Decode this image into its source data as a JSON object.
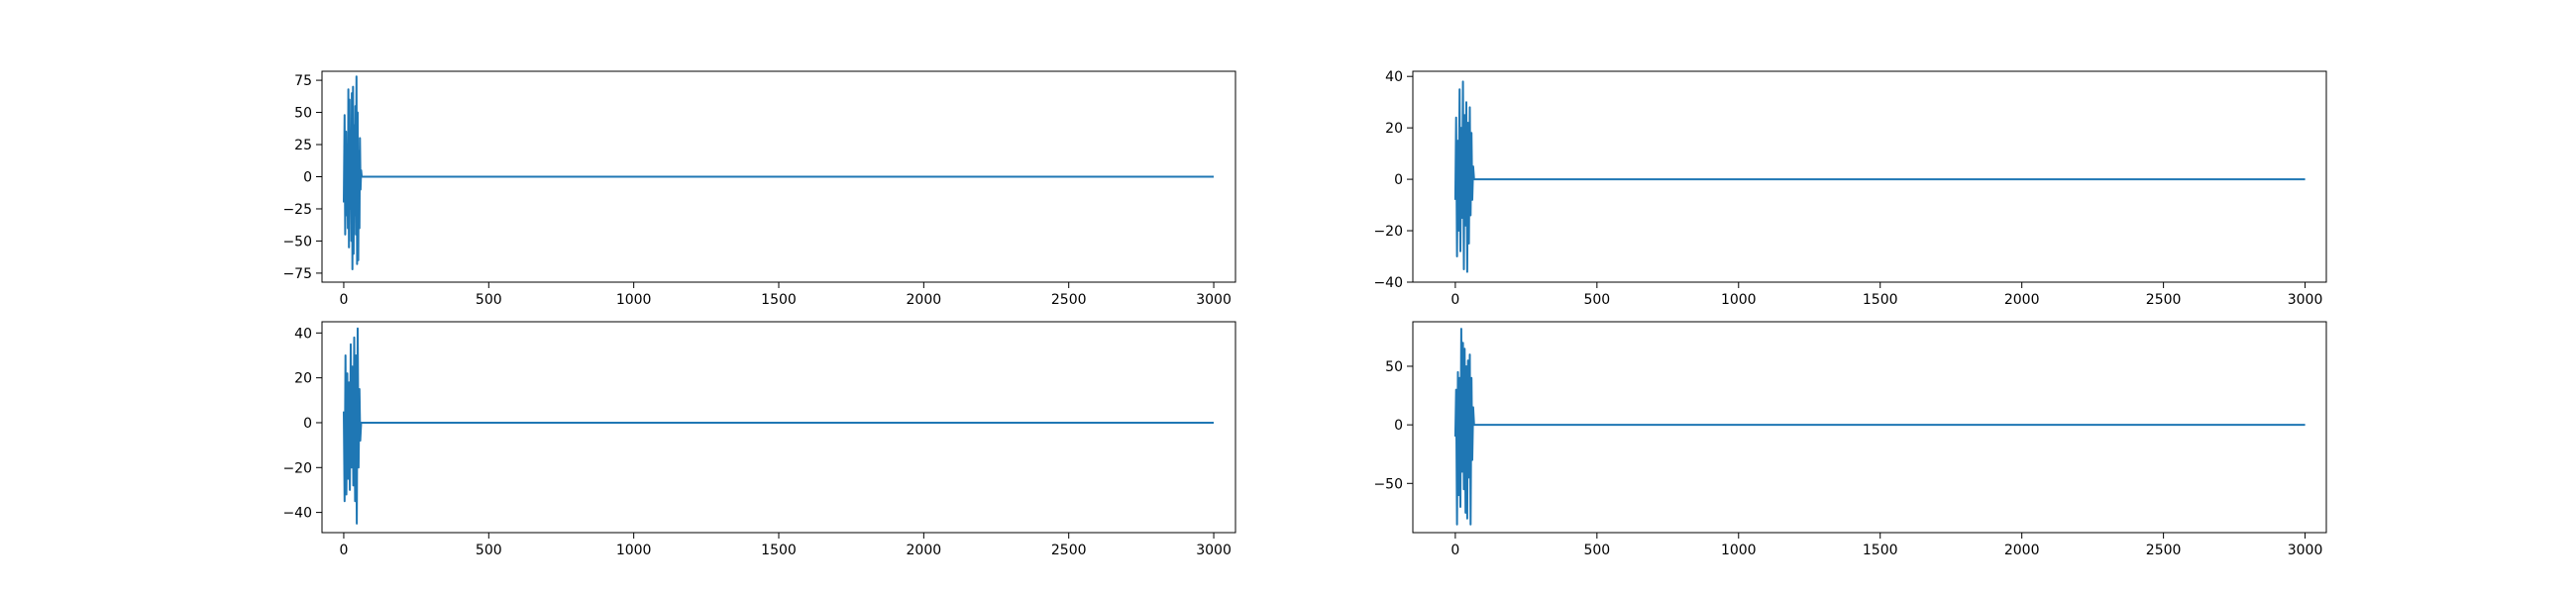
{
  "chart_data": [
    {
      "type": "line",
      "title": "",
      "xlabel": "",
      "ylabel": "",
      "xlim": [
        -75,
        3075
      ],
      "ylim": [
        -82,
        82
      ],
      "xticks": [
        0,
        500,
        1000,
        1500,
        2000,
        2500,
        3000
      ],
      "yticks": [
        -75,
        -50,
        -25,
        0,
        25,
        50,
        75
      ],
      "grid": false,
      "series": [
        {
          "color": "#1f77b4",
          "x": [
            0,
            3,
            5,
            8,
            10,
            12,
            14,
            16,
            18,
            20,
            22,
            24,
            26,
            28,
            30,
            32,
            34,
            36,
            38,
            40,
            42,
            44,
            46,
            48,
            50,
            52,
            54,
            56,
            58,
            60,
            62,
            3000
          ],
          "y": [
            -20,
            48,
            -45,
            35,
            -30,
            25,
            -40,
            68,
            -55,
            60,
            -25,
            20,
            -50,
            65,
            -72,
            70,
            -60,
            40,
            -30,
            55,
            -45,
            78,
            -68,
            50,
            -65,
            20,
            -40,
            30,
            -10,
            5,
            0,
            0
          ]
        }
      ]
    },
    {
      "type": "line",
      "title": "",
      "xlabel": "",
      "ylabel": "",
      "xlim": [
        -150,
        3075
      ],
      "ylim": [
        -40,
        42
      ],
      "xticks": [
        0,
        500,
        1000,
        1500,
        2000,
        2500,
        3000
      ],
      "yticks": [
        -40,
        -20,
        0,
        20,
        40
      ],
      "grid": false,
      "series": [
        {
          "color": "#1f77b4",
          "x": [
            0,
            3,
            6,
            9,
            12,
            15,
            18,
            21,
            24,
            27,
            30,
            33,
            36,
            39,
            42,
            45,
            48,
            51,
            54,
            57,
            60,
            63,
            66,
            3000
          ],
          "y": [
            -8,
            24,
            -30,
            15,
            -20,
            35,
            -28,
            20,
            -15,
            38,
            -35,
            25,
            -18,
            30,
            -36,
            22,
            -25,
            28,
            -14,
            18,
            -8,
            5,
            0,
            0
          ]
        }
      ]
    },
    {
      "type": "line",
      "title": "",
      "xlabel": "",
      "ylabel": "",
      "xlim": [
        -75,
        3075
      ],
      "ylim": [
        -49,
        45
      ],
      "xticks": [
        0,
        500,
        1000,
        1500,
        2000,
        2500,
        3000
      ],
      "yticks": [
        -40,
        -20,
        0,
        20,
        40
      ],
      "grid": false,
      "series": [
        {
          "color": "#1f77b4",
          "x": [
            0,
            3,
            6,
            9,
            12,
            15,
            18,
            21,
            24,
            27,
            30,
            33,
            36,
            39,
            42,
            45,
            48,
            51,
            54,
            57,
            60,
            3000
          ],
          "y": [
            5,
            -35,
            30,
            -32,
            22,
            -25,
            18,
            -30,
            35,
            -20,
            25,
            -28,
            38,
            -35,
            30,
            -45,
            42,
            -20,
            15,
            -8,
            0,
            0
          ]
        }
      ]
    },
    {
      "type": "line",
      "title": "",
      "xlabel": "",
      "ylabel": "",
      "xlim": [
        -150,
        3075
      ],
      "ylim": [
        -92,
        88
      ],
      "xticks": [
        0,
        500,
        1000,
        1500,
        2000,
        2500,
        3000
      ],
      "yticks": [
        -50,
        0,
        50
      ],
      "grid": false,
      "series": [
        {
          "color": "#1f77b4",
          "x": [
            0,
            3,
            6,
            9,
            12,
            15,
            18,
            21,
            24,
            27,
            30,
            33,
            36,
            39,
            42,
            45,
            48,
            51,
            54,
            57,
            60,
            63,
            66,
            3000
          ],
          "y": [
            -10,
            30,
            -85,
            45,
            -60,
            40,
            -70,
            82,
            -40,
            70,
            -55,
            65,
            -75,
            50,
            -80,
            55,
            -45,
            60,
            -85,
            40,
            -30,
            15,
            0,
            0
          ]
        }
      ]
    }
  ]
}
